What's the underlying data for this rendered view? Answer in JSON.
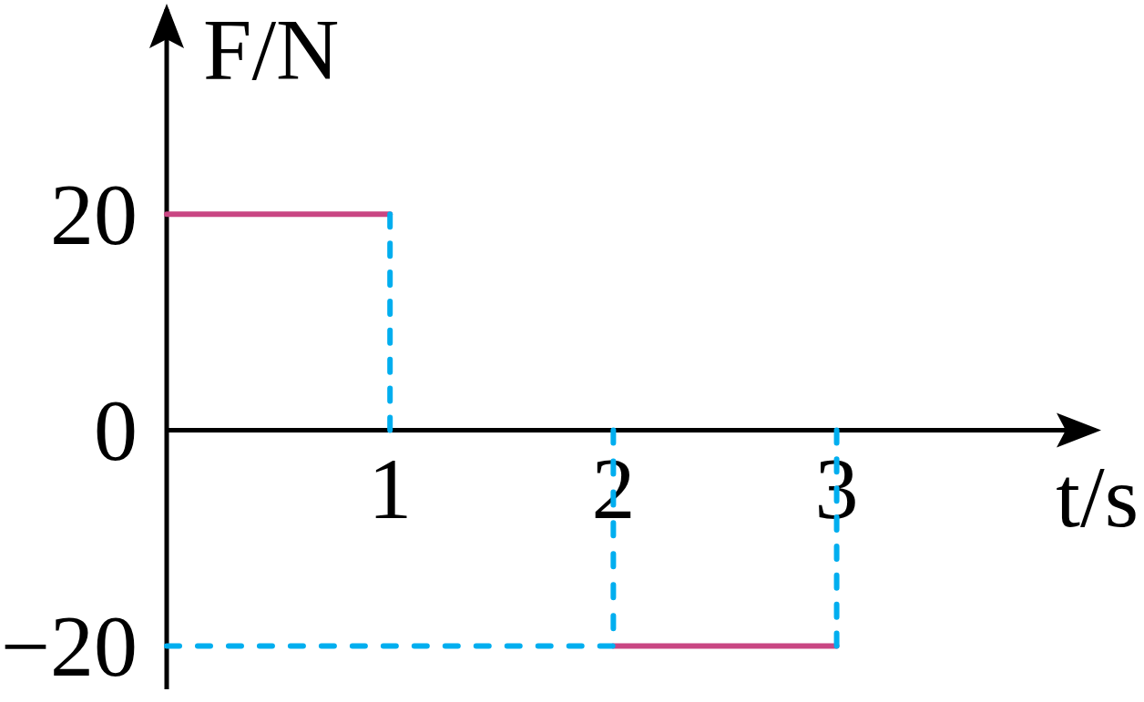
{
  "chart_data": {
    "type": "line",
    "xlabel": "t/s",
    "ylabel": "F/N",
    "xlim": [
      0,
      4.16
    ],
    "ylim": [
      -24,
      39
    ],
    "xticks": [
      1,
      2,
      3
    ],
    "yticks": [
      {
        "value": -20,
        "label": "−20"
      },
      0,
      20
    ],
    "series": [
      {
        "color": "#c94683",
        "x": [
          0,
          1
        ],
        "values": [
          20,
          20
        ],
        "line_style": "solid"
      },
      {
        "color": "#c94683",
        "x": [
          2,
          3
        ],
        "values": [
          -20,
          -20
        ],
        "line_style": "solid"
      },
      {
        "color": "#00aeef",
        "x": [
          1,
          1
        ],
        "values": [
          20,
          0
        ],
        "line_style": "dashed"
      },
      {
        "color": "#00aeef",
        "x": [
          0,
          2,
          2
        ],
        "values": [
          -20,
          -20,
          0
        ],
        "line_style": "dashed"
      },
      {
        "color": "#00aeef",
        "x": [
          3,
          3
        ],
        "values": [
          0,
          -20
        ],
        "line_style": "dashed"
      }
    ]
  }
}
